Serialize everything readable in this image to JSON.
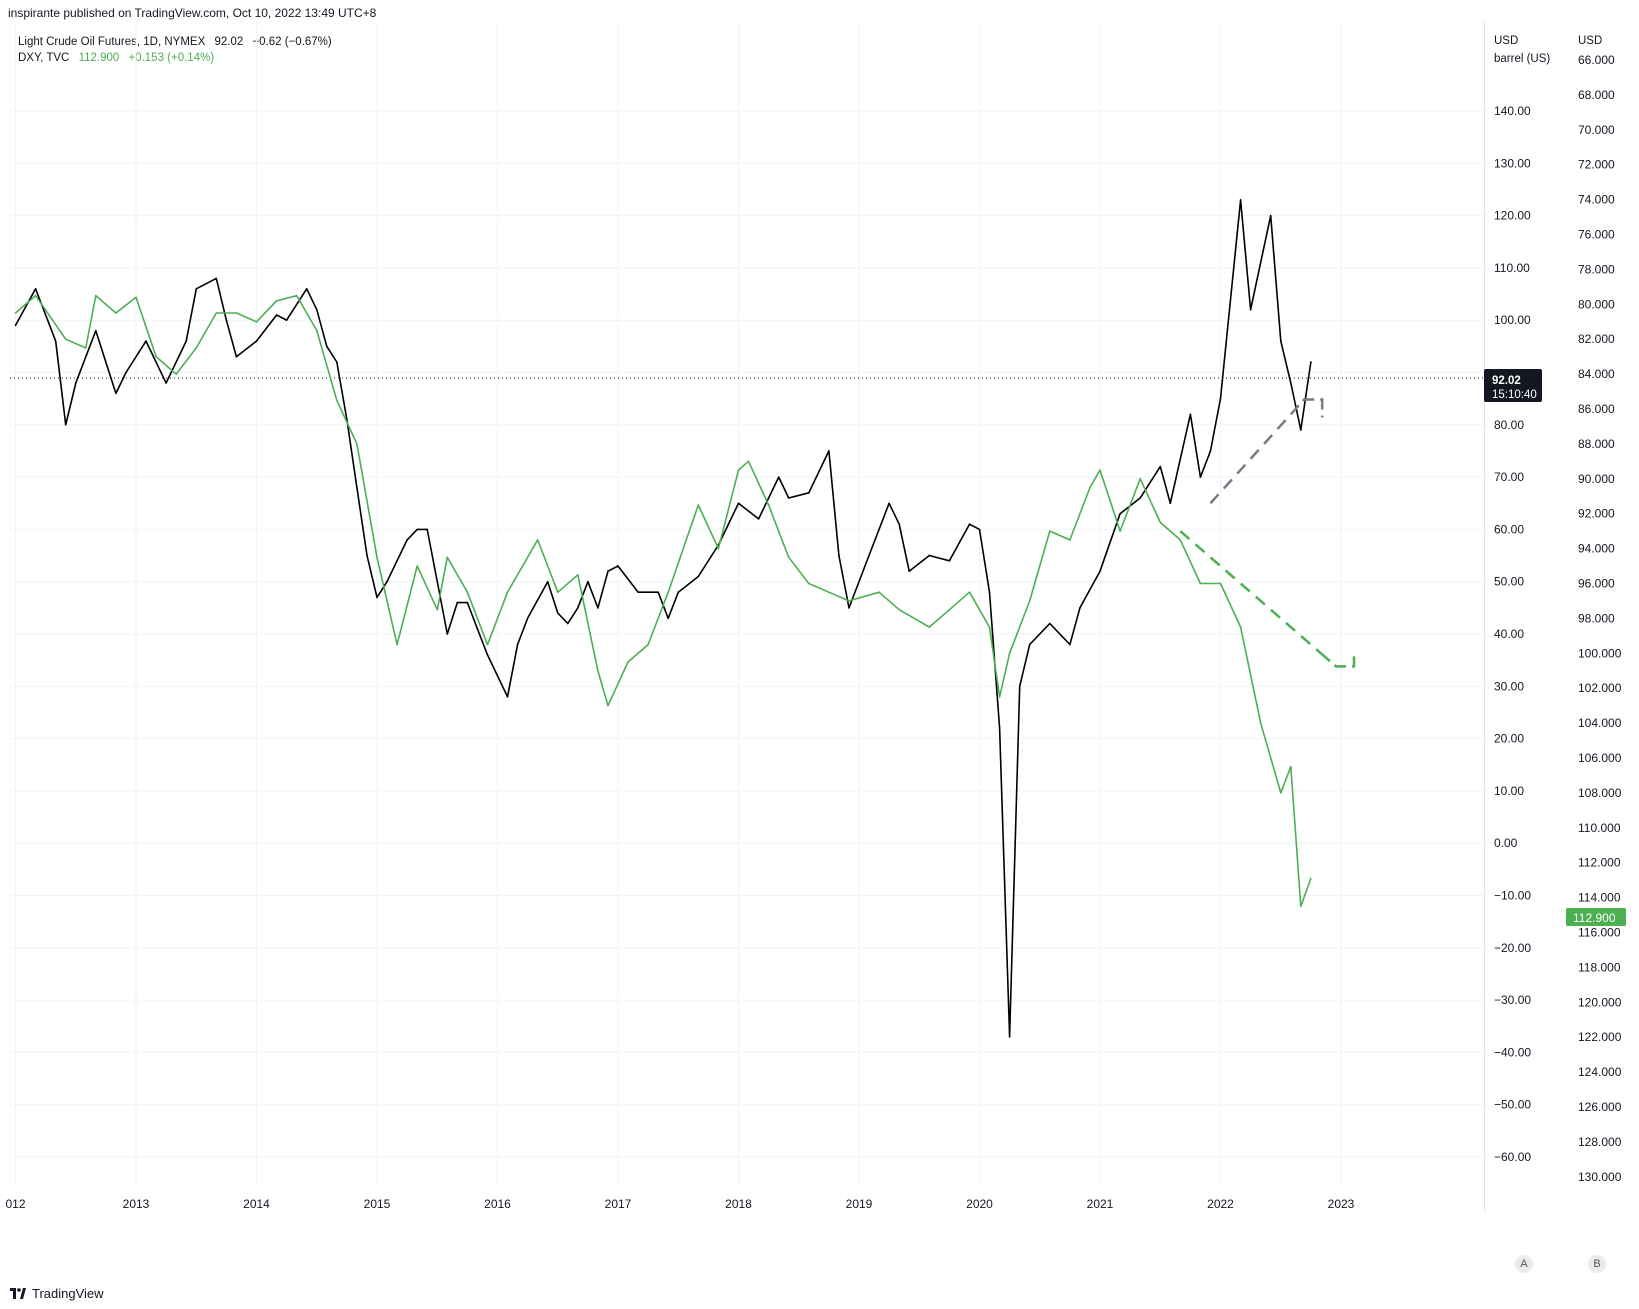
{
  "header": {
    "publisher_line": "inspirante published on TradingView.com, Oct 10, 2022 13:49 UTC+8"
  },
  "legend": {
    "oil": {
      "name": "Light Crude Oil Futures, 1D, NYMEX",
      "price": "92.02",
      "change": "−0.62 (−0.67%)"
    },
    "dxy": {
      "name": "DXY, TVC",
      "price": "112.900",
      "change": "+0.153 (+0.14%)"
    }
  },
  "axes": {
    "left_scale_head": {
      "line1": "USD",
      "line2": "barrel (US)"
    },
    "right_scale_head": {
      "line1": "USD"
    },
    "oil_ticks": [
      "140.00",
      "130.00",
      "120.00",
      "110.00",
      "100.00",
      "80.00",
      "70.00",
      "60.00",
      "50.00",
      "40.00",
      "30.00",
      "20.00",
      "10.00",
      "0.00",
      "−10.00",
      "−20.00",
      "−30.00",
      "−40.00",
      "−50.00",
      "−60.00"
    ],
    "dxy_ticks": [
      "66.000",
      "68.000",
      "70.000",
      "72.000",
      "74.000",
      "76.000",
      "78.000",
      "80.000",
      "82.000",
      "84.000",
      "86.000",
      "88.000",
      "90.000",
      "92.000",
      "94.000",
      "96.000",
      "98.000",
      "100.000",
      "102.000",
      "104.000",
      "106.000",
      "108.000",
      "110.000",
      "112.000",
      "114.000",
      "116.000",
      "118.000",
      "120.000",
      "122.000",
      "124.000",
      "126.000",
      "128.000",
      "130.000"
    ],
    "x_ticks": [
      "012",
      "2013",
      "2014",
      "2015",
      "2016",
      "2017",
      "2018",
      "2019",
      "2020",
      "2021",
      "2022",
      "2023"
    ],
    "scale_buttons": [
      "A",
      "B"
    ]
  },
  "price_badges": {
    "oil": {
      "price": "92.02",
      "countdown": "15:10:40",
      "color": "#131722"
    },
    "dxy": {
      "price": "112.900",
      "color": "#4caf50"
    }
  },
  "colors": {
    "oil": "#000000",
    "dxy": "#4caf50",
    "projection_gray": "#787b86",
    "grid": "#f0f3fa"
  },
  "footer": {
    "brand": "TradingView"
  },
  "chart_data": {
    "type": "line",
    "x_range": [
      "2012",
      "2023"
    ],
    "series": [
      {
        "name": "Light Crude Oil Futures, 1D, NYMEX",
        "axis": "left",
        "unit": "USD per barrel",
        "points": [
          [
            "2012-01",
            99
          ],
          [
            "2012-03",
            106
          ],
          [
            "2012-05",
            96
          ],
          [
            "2012-06",
            80
          ],
          [
            "2012-07",
            88
          ],
          [
            "2012-09",
            98
          ],
          [
            "2012-11",
            86
          ],
          [
            "2012-12",
            90
          ],
          [
            "2013-02",
            96
          ],
          [
            "2013-04",
            88
          ],
          [
            "2013-06",
            96
          ],
          [
            "2013-07",
            106
          ],
          [
            "2013-09",
            108
          ],
          [
            "2013-10",
            100
          ],
          [
            "2013-11",
            93
          ],
          [
            "2014-01",
            96
          ],
          [
            "2014-03",
            101
          ],
          [
            "2014-04",
            100
          ],
          [
            "2014-06",
            106
          ],
          [
            "2014-07",
            102
          ],
          [
            "2014-08",
            95
          ],
          [
            "2014-09",
            92
          ],
          [
            "2014-10",
            81
          ],
          [
            "2014-11",
            68
          ],
          [
            "2014-12",
            55
          ],
          [
            "2015-01",
            47
          ],
          [
            "2015-02",
            50
          ],
          [
            "2015-04",
            58
          ],
          [
            "2015-05",
            60
          ],
          [
            "2015-06",
            60
          ],
          [
            "2015-07",
            50
          ],
          [
            "2015-08",
            40
          ],
          [
            "2015-09",
            46
          ],
          [
            "2015-10",
            46
          ],
          [
            "2015-11",
            41
          ],
          [
            "2015-12",
            36
          ],
          [
            "2016-01",
            32
          ],
          [
            "2016-02",
            28
          ],
          [
            "2016-03",
            38
          ],
          [
            "2016-04",
            43
          ],
          [
            "2016-06",
            50
          ],
          [
            "2016-07",
            44
          ],
          [
            "2016-08",
            42
          ],
          [
            "2016-09",
            45
          ],
          [
            "2016-10",
            50
          ],
          [
            "2016-11",
            45
          ],
          [
            "2016-12",
            52
          ],
          [
            "2017-01",
            53
          ],
          [
            "2017-03",
            48
          ],
          [
            "2017-05",
            48
          ],
          [
            "2017-06",
            43
          ],
          [
            "2017-07",
            48
          ],
          [
            "2017-09",
            51
          ],
          [
            "2017-11",
            57
          ],
          [
            "2018-01",
            65
          ],
          [
            "2018-03",
            62
          ],
          [
            "2018-05",
            70
          ],
          [
            "2018-06",
            66
          ],
          [
            "2018-08",
            67
          ],
          [
            "2018-10",
            75
          ],
          [
            "2018-11",
            55
          ],
          [
            "2018-12",
            45
          ],
          [
            "2019-02",
            55
          ],
          [
            "2019-04",
            65
          ],
          [
            "2019-05",
            61
          ],
          [
            "2019-06",
            52
          ],
          [
            "2019-08",
            55
          ],
          [
            "2019-10",
            54
          ],
          [
            "2019-12",
            61
          ],
          [
            "2020-01",
            60
          ],
          [
            "2020-02",
            48
          ],
          [
            "2020-03",
            22
          ],
          [
            "2020-04",
            -37
          ],
          [
            "2020-05",
            30
          ],
          [
            "2020-06",
            38
          ],
          [
            "2020-08",
            42
          ],
          [
            "2020-10",
            38
          ],
          [
            "2020-11",
            45
          ],
          [
            "2021-01",
            52
          ],
          [
            "2021-03",
            63
          ],
          [
            "2021-05",
            66
          ],
          [
            "2021-07",
            72
          ],
          [
            "2021-08",
            65
          ],
          [
            "2021-10",
            82
          ],
          [
            "2021-11",
            70
          ],
          [
            "2021-12",
            75
          ],
          [
            "2022-01",
            85
          ],
          [
            "2022-03",
            123
          ],
          [
            "2022-04",
            102
          ],
          [
            "2022-06",
            120
          ],
          [
            "2022-07",
            96
          ],
          [
            "2022-08",
            88
          ],
          [
            "2022-09",
            79
          ],
          [
            "2022-10",
            92.02
          ]
        ]
      },
      {
        "name": "DXY, TVC",
        "axis": "right",
        "unit": "USD",
        "axis_inverted": true,
        "points": [
          [
            "2012-01",
            80.5
          ],
          [
            "2012-03",
            79.5
          ],
          [
            "2012-06",
            82.0
          ],
          [
            "2012-08",
            82.5
          ],
          [
            "2012-09",
            79.5
          ],
          [
            "2012-11",
            80.5
          ],
          [
            "2013-01",
            79.6
          ],
          [
            "2013-03",
            83.0
          ],
          [
            "2013-05",
            84.0
          ],
          [
            "2013-07",
            82.5
          ],
          [
            "2013-09",
            80.5
          ],
          [
            "2013-11",
            80.5
          ],
          [
            "2014-01",
            81.0
          ],
          [
            "2014-03",
            79.8
          ],
          [
            "2014-05",
            79.5
          ],
          [
            "2014-07",
            81.5
          ],
          [
            "2014-09",
            85.5
          ],
          [
            "2014-11",
            88.0
          ],
          [
            "2015-01",
            94.5
          ],
          [
            "2015-03",
            99.5
          ],
          [
            "2015-05",
            95.0
          ],
          [
            "2015-07",
            97.5
          ],
          [
            "2015-08",
            94.5
          ],
          [
            "2015-10",
            96.5
          ],
          [
            "2015-12",
            99.5
          ],
          [
            "2016-02",
            96.5
          ],
          [
            "2016-05",
            93.5
          ],
          [
            "2016-07",
            96.5
          ],
          [
            "2016-09",
            95.5
          ],
          [
            "2016-11",
            101.0
          ],
          [
            "2016-12",
            103.0
          ],
          [
            "2017-02",
            100.5
          ],
          [
            "2017-04",
            99.5
          ],
          [
            "2017-06",
            96.5
          ],
          [
            "2017-09",
            91.5
          ],
          [
            "2017-11",
            94.0
          ],
          [
            "2018-01",
            89.5
          ],
          [
            "2018-02",
            89.0
          ],
          [
            "2018-04",
            91.5
          ],
          [
            "2018-06",
            94.5
          ],
          [
            "2018-08",
            96.0
          ],
          [
            "2018-10",
            96.5
          ],
          [
            "2018-12",
            97.0
          ],
          [
            "2019-03",
            96.5
          ],
          [
            "2019-05",
            97.5
          ],
          [
            "2019-08",
            98.5
          ],
          [
            "2019-10",
            97.5
          ],
          [
            "2019-12",
            96.5
          ],
          [
            "2020-02",
            98.5
          ],
          [
            "2020-03",
            102.5
          ],
          [
            "2020-04",
            100.0
          ],
          [
            "2020-06",
            97.0
          ],
          [
            "2020-08",
            93.0
          ],
          [
            "2020-10",
            93.5
          ],
          [
            "2020-12",
            90.5
          ],
          [
            "2021-01",
            89.5
          ],
          [
            "2021-03",
            93.0
          ],
          [
            "2021-05",
            90.0
          ],
          [
            "2021-07",
            92.5
          ],
          [
            "2021-09",
            93.5
          ],
          [
            "2021-11",
            96.0
          ],
          [
            "2022-01",
            96.0
          ],
          [
            "2022-03",
            98.5
          ],
          [
            "2022-05",
            104.0
          ],
          [
            "2022-07",
            108.0
          ],
          [
            "2022-08",
            106.5
          ],
          [
            "2022-09",
            114.5
          ],
          [
            "2022-10",
            112.9
          ]
        ]
      }
    ],
    "projections": [
      {
        "series": "Light Crude Oil Futures, 1D, NYMEX",
        "style": "dashed",
        "from": [
          "2021-12",
          65
        ],
        "to": [
          "2022-08",
          82
        ]
      },
      {
        "series": "DXY, TVC",
        "style": "dashed",
        "from": [
          "2021-09",
          93
        ],
        "to": [
          "2022-11",
          100
        ]
      }
    ]
  }
}
